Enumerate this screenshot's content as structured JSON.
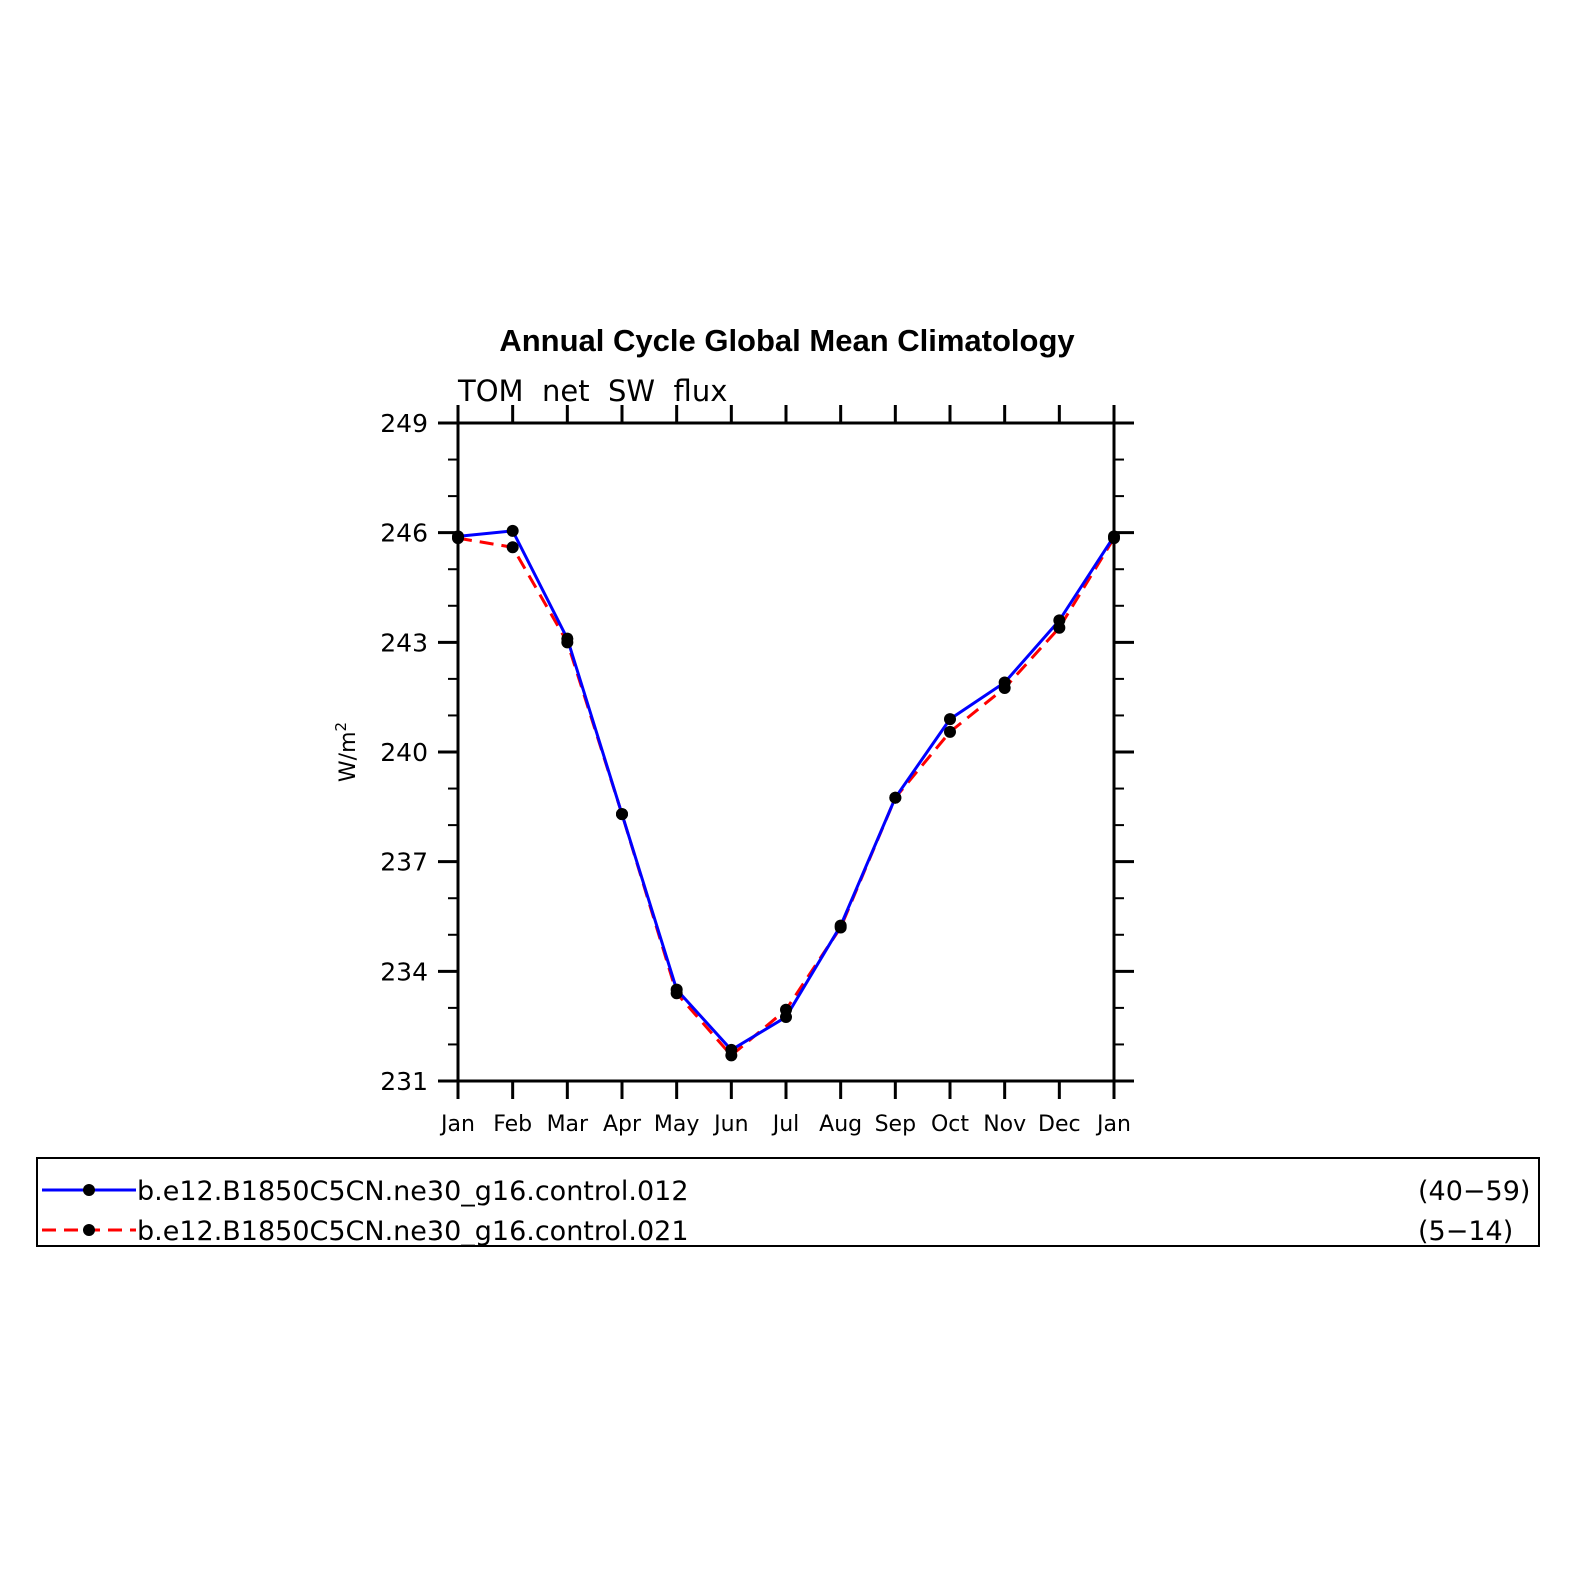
{
  "chart_data": {
    "type": "line",
    "title": "Annual Cycle Global Mean Climatology",
    "subtitle": "TOM  net  SW  flux",
    "xlabel": "",
    "ylabel": "W/m",
    "ylabel_superscript": "2",
    "categories": [
      "Jan",
      "Feb",
      "Mar",
      "Apr",
      "May",
      "Jun",
      "Jul",
      "Aug",
      "Sep",
      "Oct",
      "Nov",
      "Dec",
      "Jan"
    ],
    "ylim": [
      231,
      249
    ],
    "yticks": [
      "231",
      "234",
      "237",
      "240",
      "243",
      "246",
      "249"
    ],
    "grid": false,
    "legend_position": "bottom",
    "series": [
      {
        "name": "b.e12.B1850C5CN.ne30_g16.control.012",
        "years": "(40−59)",
        "color": "#0000ff",
        "dash": "solid",
        "values": [
          245.9,
          246.05,
          243.1,
          238.3,
          233.5,
          231.85,
          232.75,
          235.25,
          238.75,
          240.9,
          241.9,
          243.6,
          245.9
        ]
      },
      {
        "name": "b.e12.B1850C5CN.ne30_g16.control.021",
        "years": "(5−14)",
        "color": "#ff0000",
        "dash": "dashed",
        "values": [
          245.85,
          245.6,
          243.0,
          238.3,
          233.4,
          231.7,
          232.95,
          235.2,
          238.75,
          240.55,
          241.75,
          243.4,
          245.85
        ]
      }
    ]
  }
}
